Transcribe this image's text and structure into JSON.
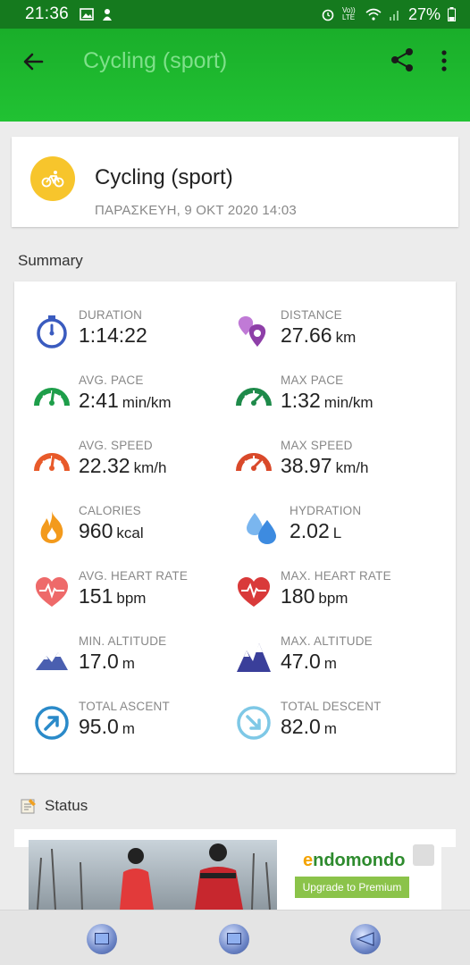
{
  "status_bar": {
    "time": "21:36",
    "battery": "27%",
    "icons": [
      "image-icon",
      "notification-icon",
      "alarm-icon",
      "volte-icon",
      "wifi-icon",
      "signal-icon",
      "battery-icon"
    ],
    "volte_label": "Vo)) LTE"
  },
  "app_bar": {
    "title": "Cycling (sport)",
    "background": "#1fb72f"
  },
  "workout": {
    "name": "Cycling (sport)",
    "date": "ΠΑΡΑΣΚΕΥΗ, 9 ΟΚΤ 2020 14:03",
    "avatar_color": "#f7c52c",
    "avatar_icon": "bicycle-icon"
  },
  "summary": {
    "title": "Summary",
    "stats": [
      {
        "label": "DURATION",
        "value": "1:14:22",
        "unit": "",
        "icon": "stopwatch-icon",
        "color": "#3a5bbf"
      },
      {
        "label": "DISTANCE",
        "value": "27.66",
        "unit": "km",
        "icon": "location-pins-icon",
        "color": "#8e3fa8"
      },
      {
        "label": "AVG. PACE",
        "value": "2:41",
        "unit": "min/km",
        "icon": "pace-gauge-icon",
        "color": "#1e9e4a"
      },
      {
        "label": "MAX PACE",
        "value": "1:32",
        "unit": "min/km",
        "icon": "max-pace-gauge-icon",
        "color": "#1e8a4a"
      },
      {
        "label": "AVG. SPEED",
        "value": "22.32",
        "unit": "km/h",
        "icon": "speed-gauge-icon",
        "color": "#e85a2a"
      },
      {
        "label": "MAX SPEED",
        "value": "38.97",
        "unit": "km/h",
        "icon": "max-speed-gauge-icon",
        "color": "#d9492a"
      },
      {
        "label": "CALORIES",
        "value": "960",
        "unit": "kcal",
        "icon": "flame-icon",
        "color": "#f39a1c"
      },
      {
        "label": "HYDRATION",
        "value": "2.02",
        "unit": "L",
        "icon": "water-drops-icon",
        "color": "#3d8be0"
      },
      {
        "label": "AVG. HEART RATE",
        "value": "151",
        "unit": "bpm",
        "icon": "heart-rate-icon",
        "color": "#ee6a6a"
      },
      {
        "label": "MAX. HEART RATE",
        "value": "180",
        "unit": "bpm",
        "icon": "max-heart-rate-icon",
        "color": "#d93a3a"
      },
      {
        "label": "MIN. ALTITUDE",
        "value": "17.0",
        "unit": "m",
        "icon": "mountain-low-icon",
        "color": "#4a5fb0"
      },
      {
        "label": "MAX. ALTITUDE",
        "value": "47.0",
        "unit": "m",
        "icon": "mountain-high-icon",
        "color": "#3a3f9a"
      },
      {
        "label": "TOTAL ASCENT",
        "value": "95.0",
        "unit": "m",
        "icon": "ascent-arrow-icon",
        "color": "#2a8ac9"
      },
      {
        "label": "TOTAL DESCENT",
        "value": "82.0",
        "unit": "m",
        "icon": "descent-arrow-icon",
        "color": "#7ec8e6"
      }
    ]
  },
  "status_section": {
    "title": "Status",
    "icon": "memo-icon"
  },
  "ad": {
    "brand_e": "e",
    "brand_rest": "ndomondo",
    "button": "Upgrade to Premium"
  }
}
